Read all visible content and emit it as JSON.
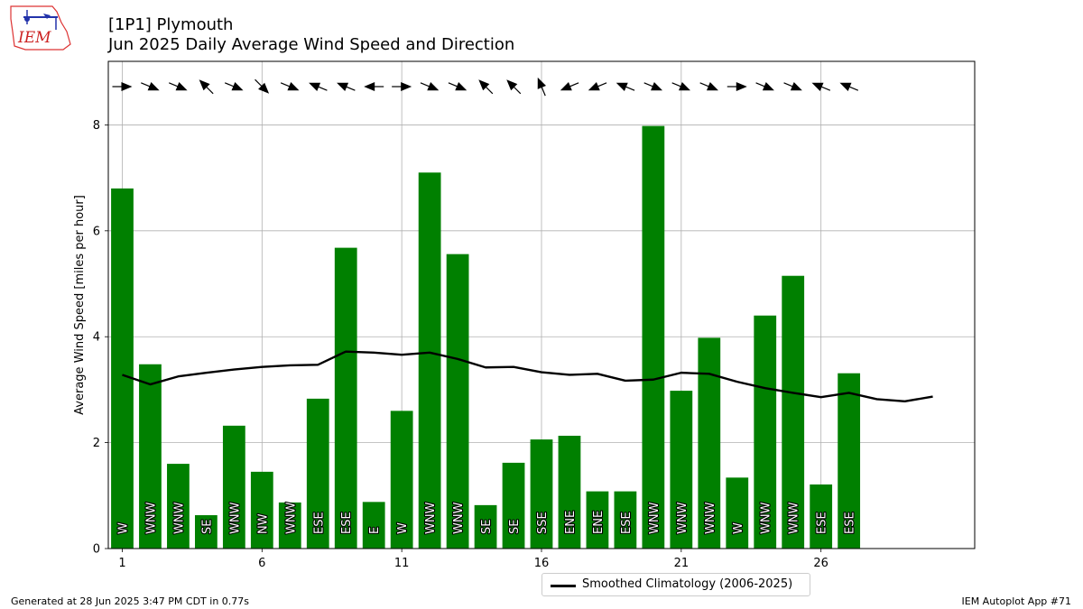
{
  "logo": {
    "text": "IEM",
    "icon": "iem-logo-icon"
  },
  "header": {
    "title_line1": "[1P1] Plymouth",
    "title_line2": "Jun 2025 Daily Average Wind Speed and Direction"
  },
  "footer": {
    "left": "Generated at 28 Jun 2025 3:47 PM CDT in 0.77s",
    "right": "IEM Autoplot App #71"
  },
  "chart_data": {
    "type": "bar",
    "ylabel": "Average Wind Speed [miles per hour]",
    "xlabel": "",
    "xlim": [
      0.5,
      31.5
    ],
    "ylim": [
      0,
      9.2
    ],
    "x_ticks": [
      1,
      6,
      11,
      16,
      21,
      26
    ],
    "y_ticks": [
      0,
      2,
      4,
      6,
      8
    ],
    "grid": true,
    "bar_color": "#008000",
    "legend_position": "bottom-center-below",
    "days": [
      1,
      2,
      3,
      4,
      5,
      6,
      7,
      8,
      9,
      10,
      11,
      12,
      13,
      14,
      15,
      16,
      17,
      18,
      19,
      20,
      21,
      22,
      23,
      24,
      25,
      26,
      27
    ],
    "values": [
      6.8,
      3.48,
      1.6,
      0.63,
      2.32,
      1.45,
      0.87,
      2.83,
      5.68,
      0.88,
      2.6,
      7.1,
      5.56,
      0.82,
      1.62,
      2.06,
      2.13,
      1.08,
      1.08,
      7.98,
      2.98,
      3.98,
      1.34,
      4.4,
      5.15,
      1.21,
      3.31
    ],
    "directions": [
      "W",
      "WNW",
      "WNW",
      "SE",
      "WNW",
      "NW",
      "WNW",
      "ESE",
      "ESE",
      "E",
      "W",
      "WNW",
      "WNW",
      "SE",
      "SE",
      "SSE",
      "ENE",
      "ENE",
      "ESE",
      "WNW",
      "WNW",
      "WNW",
      "W",
      "WNW",
      "WNW",
      "ESE",
      "ESE"
    ],
    "series": [
      {
        "name": "Smoothed Climatology (2006-2025)",
        "color": "#000000",
        "x": [
          1,
          2,
          3,
          4,
          5,
          6,
          7,
          8,
          9,
          10,
          11,
          12,
          13,
          14,
          15,
          16,
          17,
          18,
          19,
          20,
          21,
          22,
          23,
          24,
          25,
          26,
          27,
          28,
          29,
          30
        ],
        "values": [
          3.28,
          3.1,
          3.25,
          3.32,
          3.38,
          3.43,
          3.46,
          3.47,
          3.72,
          3.7,
          3.66,
          3.7,
          3.58,
          3.42,
          3.43,
          3.33,
          3.28,
          3.3,
          3.17,
          3.19,
          3.32,
          3.3,
          3.15,
          3.03,
          2.94,
          2.86,
          2.94,
          2.82,
          2.78,
          2.87
        ]
      }
    ]
  }
}
